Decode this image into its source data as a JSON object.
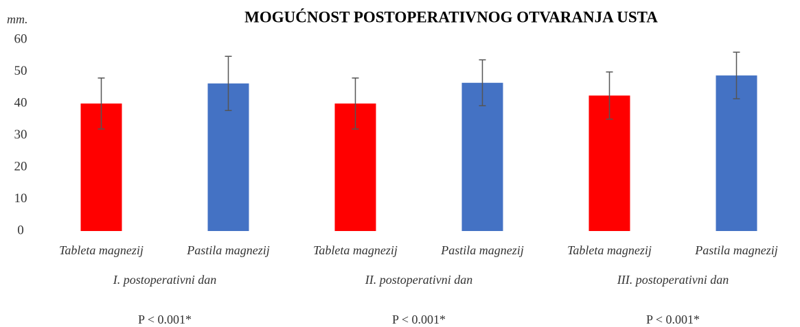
{
  "chart_data": {
    "type": "bar",
    "title": "MOGUĆNOST POSTOPERATIVNOG OTVARANJA USTA",
    "y_label": "mm.",
    "groups": [
      "I. postoperativni dan",
      "II. postoperativni dan",
      "III. postoperativni dan"
    ],
    "group_notes": [
      "P < 0.001*",
      "P < 0.001*",
      "P < 0.001*"
    ],
    "series": [
      {
        "name": "Tableta magnezij",
        "color": "#ff0000",
        "values": [
          40,
          40,
          42.5
        ],
        "errors": [
          8,
          8,
          7.4
        ]
      },
      {
        "name": "Pastila magnezij",
        "color": "#4472c4",
        "values": [
          46.3,
          46.5,
          48.8
        ],
        "errors": [
          8.5,
          7.2,
          7.3
        ]
      }
    ],
    "ylim": [
      0,
      60
    ],
    "yticks": [
      0,
      10,
      20,
      30,
      40,
      50,
      60
    ],
    "grid": false
  }
}
